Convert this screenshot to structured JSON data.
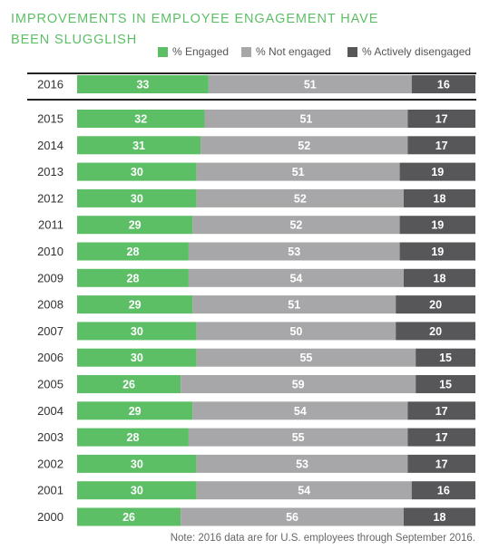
{
  "title_line1": "IMPROVEMENTS IN EMPLOYEE ENGAGEMENT HAVE",
  "title_line2": "BEEN SLUGGLISH",
  "legend": {
    "engaged": "% Engaged",
    "not_engaged": "% Not engaged",
    "disengaged": "% Actively disengaged"
  },
  "colors": {
    "engaged": "#5cbf66",
    "not_engaged": "#a7a7a9",
    "disengaged": "#57575a"
  },
  "note": "Note: 2016 data are for U.S. employees through September 2016.",
  "chart_data": {
    "type": "bar",
    "orientation": "horizontal",
    "stacked": true,
    "categories": [
      "2016",
      "2015",
      "2014",
      "2013",
      "2012",
      "2011",
      "2010",
      "2009",
      "2008",
      "2007",
      "2006",
      "2005",
      "2004",
      "2003",
      "2002",
      "2001",
      "2000"
    ],
    "series": [
      {
        "name": "% Engaged",
        "values": [
          33,
          32,
          31,
          30,
          30,
          29,
          28,
          28,
          29,
          30,
          30,
          26,
          29,
          28,
          30,
          30,
          26
        ]
      },
      {
        "name": "% Not engaged",
        "values": [
          51,
          51,
          52,
          51,
          52,
          52,
          53,
          54,
          51,
          50,
          55,
          59,
          54,
          55,
          53,
          54,
          56
        ]
      },
      {
        "name": "% Actively disengaged",
        "values": [
          16,
          17,
          17,
          19,
          18,
          19,
          19,
          18,
          20,
          20,
          15,
          15,
          17,
          17,
          17,
          16,
          18
        ]
      }
    ],
    "title": "IMPROVEMENTS IN EMPLOYEE ENGAGEMENT HAVE BEEN SLUGGLISH",
    "legend_position": "top-right",
    "data_labels": true,
    "grid": false
  }
}
